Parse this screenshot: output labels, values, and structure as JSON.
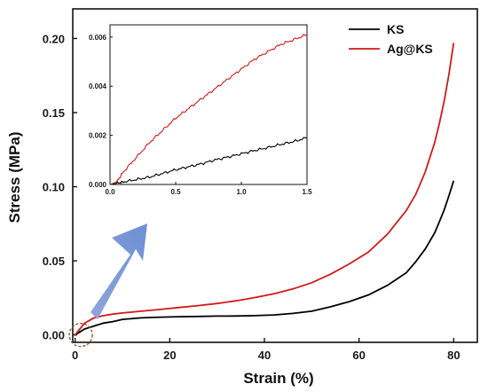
{
  "chart_data": [
    {
      "type": "line",
      "title": "",
      "xlabel": "Strain (%)",
      "ylabel": "Stress (MPa)",
      "xlim": [
        -0.5,
        85
      ],
      "ylim": [
        -0.005,
        0.22
      ],
      "xticks": [
        0,
        20,
        40,
        60,
        80
      ],
      "xtick_labels": [
        "0",
        "20",
        "40",
        "60",
        "80"
      ],
      "yticks": [
        0.0,
        0.05,
        0.1,
        0.15,
        0.2
      ],
      "ytick_labels": [
        "0.00",
        "0.05",
        "0.10",
        "0.15",
        "0.20"
      ],
      "grid": false,
      "legend": "top-right",
      "series": [
        {
          "name": "KS",
          "color": "#000000",
          "x": [
            0,
            1,
            2,
            4,
            6,
            8,
            10,
            14,
            18,
            22,
            26,
            30,
            34,
            38,
            42,
            46,
            50,
            54,
            58,
            62,
            66,
            70,
            72,
            74,
            76,
            77,
            78,
            79,
            80
          ],
          "y": [
            0,
            0.002,
            0.004,
            0.006,
            0.008,
            0.009,
            0.0105,
            0.0115,
            0.012,
            0.0123,
            0.0125,
            0.0127,
            0.0128,
            0.013,
            0.0135,
            0.0145,
            0.016,
            0.019,
            0.0225,
            0.027,
            0.0335,
            0.042,
            0.0495,
            0.058,
            0.069,
            0.0765,
            0.0845,
            0.094,
            0.104
          ]
        },
        {
          "name": "Ag@KS",
          "color": "#d11a1a",
          "x": [
            0,
            1,
            2,
            4,
            6,
            8,
            10,
            14,
            18,
            22,
            26,
            30,
            34,
            38,
            42,
            46,
            50,
            54,
            58,
            62,
            66,
            70,
            72,
            74,
            76,
            77,
            78,
            79,
            80
          ],
          "y": [
            0,
            0.004,
            0.008,
            0.0115,
            0.013,
            0.014,
            0.0148,
            0.016,
            0.0172,
            0.0185,
            0.0198,
            0.0212,
            0.023,
            0.0252,
            0.0278,
            0.031,
            0.0352,
            0.041,
            0.048,
            0.056,
            0.068,
            0.084,
            0.095,
            0.11,
            0.13,
            0.143,
            0.158,
            0.176,
            0.197
          ]
        }
      ],
      "annotations": {
        "circle_center": [
          1.2,
          0.0
        ],
        "arrow_direction": "points from the zoom circle toward the inset"
      }
    },
    {
      "type": "line",
      "title": "",
      "xlabel": "",
      "ylabel": "",
      "xlim": [
        0,
        1.5
      ],
      "ylim": [
        0,
        0.0065
      ],
      "xticks": [
        0.0,
        0.5,
        1.0,
        1.5
      ],
      "xtick_labels": [
        "0.0",
        "0.5",
        "1.0",
        "1.5"
      ],
      "yticks": [
        0.0,
        0.002,
        0.004,
        0.006
      ],
      "ytick_labels": [
        "0.000",
        "0.002",
        "0.004",
        "0.006"
      ],
      "grid": false,
      "series": [
        {
          "name": "KS",
          "color": "#000000",
          "x": [
            0,
            0.05,
            0.1,
            0.2,
            0.3,
            0.4,
            0.5,
            0.6,
            0.7,
            0.8,
            0.9,
            1.0,
            1.1,
            1.2,
            1.3,
            1.4,
            1.5
          ],
          "y": [
            0,
            5e-05,
            0.0001,
            0.0002,
            0.0003,
            0.00045,
            0.0006,
            0.00072,
            0.00085,
            0.001,
            0.00112,
            0.00125,
            0.00138,
            0.0015,
            0.00163,
            0.00175,
            0.0019
          ]
        },
        {
          "name": "Ag@KS",
          "color": "#d11a1a",
          "x": [
            0,
            0.05,
            0.1,
            0.2,
            0.3,
            0.4,
            0.5,
            0.6,
            0.7,
            0.8,
            0.9,
            1.0,
            1.1,
            1.2,
            1.3,
            1.4,
            1.5
          ],
          "y": [
            0,
            0.0001,
            0.0005,
            0.0011,
            0.0017,
            0.0022,
            0.0027,
            0.0031,
            0.0035,
            0.0039,
            0.0043,
            0.0047,
            0.0051,
            0.0054,
            0.0057,
            0.0059,
            0.0061
          ]
        }
      ]
    }
  ]
}
